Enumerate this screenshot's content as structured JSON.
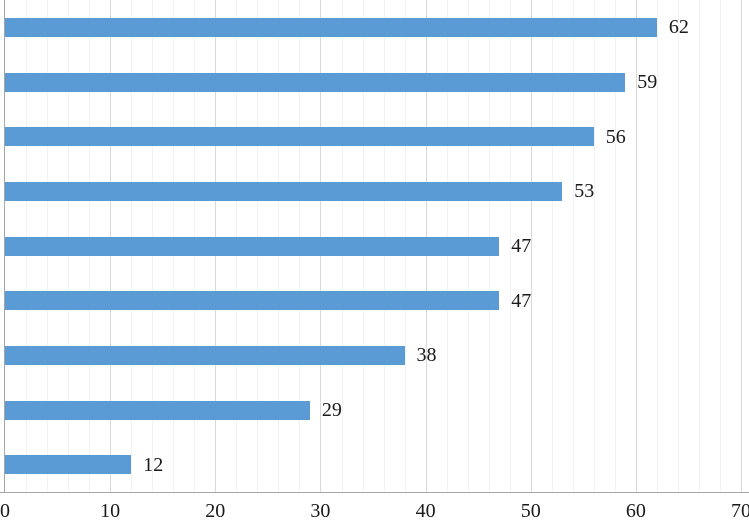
{
  "chart_data": {
    "type": "bar",
    "orientation": "horizontal",
    "title": "",
    "xlabel": "",
    "ylabel": "",
    "values": [
      62,
      59,
      56,
      53,
      47,
      47,
      38,
      29,
      12
    ],
    "data_labels_visible": true,
    "xlim": [
      0,
      70
    ],
    "x_ticks": [
      0,
      10,
      20,
      30,
      40,
      50,
      60,
      70
    ],
    "major_grid_step": 10,
    "minor_grid_step": 2,
    "grid": "on",
    "legend": "none",
    "colors": {
      "bar_fill": "#5B9BD5",
      "major_gridline": "#D9D9D9",
      "minor_gridline": "#F2F2F2",
      "axis_line": "#A6A6A6",
      "label_text": "#1A1A1A"
    }
  }
}
